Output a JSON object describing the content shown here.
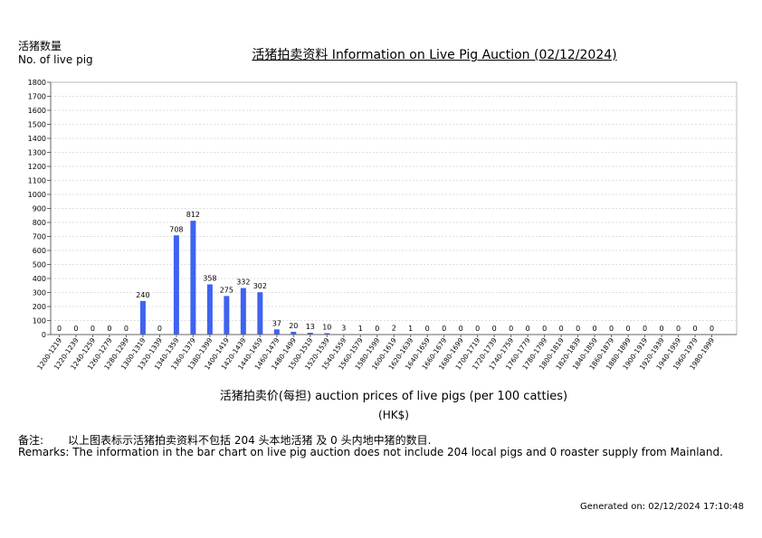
{
  "ylabel_cn": "活猪数量",
  "ylabel_en": "No. of live pig",
  "title": "活猪拍卖资料 Information on Live Pig Auction (02/12/2024)",
  "xlabel": "活猪拍卖价(每担) auction prices of live pigs (per 100 catties)",
  "xunit": "(HK$)",
  "remarks": {
    "cn_prefix": "备注:",
    "cn_text": "以上图表标示活猪拍卖资料不包括 204 头本地活猪 及 0 头内地中猪的数目.",
    "en": "Remarks: The information in the bar chart on live pig auction does not include 204 local pigs and 0 roaster supply from Mainland."
  },
  "generated": "Generated on: 02/12/2024 17:10:48",
  "chart_data": {
    "type": "bar",
    "title": "活猪拍卖资料 Information on Live Pig Auction (02/12/2024)",
    "xlabel": "活猪拍卖价(每担) auction prices of live pigs (per 100 catties)",
    "ylabel": "活猪数量 No. of live pig",
    "ylim": [
      0,
      1800
    ],
    "yticks": [
      0,
      100,
      200,
      300,
      400,
      500,
      600,
      700,
      800,
      900,
      1000,
      1100,
      1200,
      1300,
      1400,
      1500,
      1600,
      1700,
      1800
    ],
    "grid": true,
    "bar_color": "#3f63f0",
    "categories": [
      "1200-1219",
      "1220-1239",
      "1240-1259",
      "1260-1279",
      "1280-1299",
      "1300-1319",
      "1320-1339",
      "1340-1359",
      "1360-1379",
      "1380-1399",
      "1400-1419",
      "1420-1439",
      "1440-1459",
      "1460-1479",
      "1480-1499",
      "1500-1519",
      "1520-1539",
      "1540-1559",
      "1560-1579",
      "1580-1599",
      "1600-1619",
      "1620-1639",
      "1640-1659",
      "1660-1679",
      "1680-1699",
      "1700-1719",
      "1720-1739",
      "1740-1759",
      "1760-1779",
      "1780-1799",
      "1800-1819",
      "1820-1839",
      "1840-1859",
      "1860-1879",
      "1880-1899",
      "1900-1919",
      "1920-1939",
      "1940-1959",
      "1960-1979",
      "1980-1999"
    ],
    "values": [
      0,
      0,
      0,
      0,
      0,
      240,
      0,
      708,
      812,
      358,
      275,
      332,
      302,
      37,
      20,
      13,
      10,
      3,
      1,
      0,
      2,
      1,
      0,
      0,
      0,
      0,
      0,
      0,
      0,
      0,
      0,
      0,
      0,
      0,
      0,
      0,
      0,
      0,
      0,
      0
    ]
  }
}
